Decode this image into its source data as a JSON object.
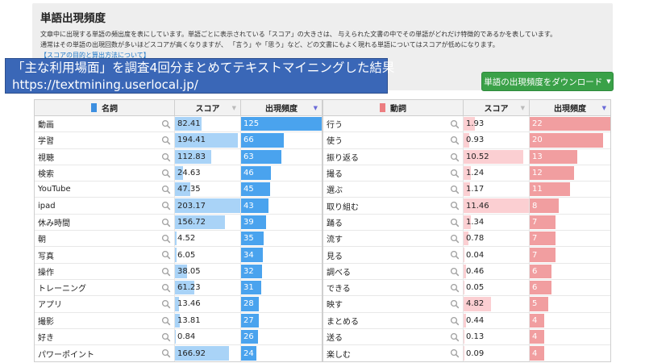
{
  "info": {
    "title": "単語出現頻度",
    "desc_line1": "文章中に出現する単語の頻出度を表にしています。単語ごとに表示されている「スコア」の大きさは、 与えられた文書の中でその単語がどれだけ特徴的であるかを表しています。",
    "desc_line2": "通常はその単語の出現回数が多いほどスコアが高くなりますが、 「言う」や「思う」など、どの文書にもよく現れる単語についてはスコアが低めになります。",
    "link": "【スコアの目的と算出方法について】"
  },
  "banner": {
    "line1": "「主な利用場面」を調査4回分まとめてテキストマイニングした結果",
    "line2": "https://textmining.userlocal.jp/"
  },
  "download_button": "単語の出現頻度をダウンロード",
  "colors": {
    "noun_bar": "#a9d3f7",
    "noun_freq": "#4aa3ee",
    "noun_legend": "#3d8fe0",
    "verb_bar": "#fbcfd2",
    "verb_freq": "#f19ea0",
    "verb_legend": "#ec7d80"
  },
  "nouns": {
    "header": {
      "word": "名詞",
      "score": "スコア",
      "freq": "出現頻度"
    },
    "rows": [
      {
        "word": "動画",
        "score": "82.41",
        "freq": "125"
      },
      {
        "word": "学習",
        "score": "194.41",
        "freq": "66"
      },
      {
        "word": "視聴",
        "score": "112.83",
        "freq": "63"
      },
      {
        "word": "検索",
        "score": "24.63",
        "freq": "46"
      },
      {
        "word": "YouTube",
        "score": "47.35",
        "freq": "45"
      },
      {
        "word": "ipad",
        "score": "203.17",
        "freq": "43"
      },
      {
        "word": "休み時間",
        "score": "156.72",
        "freq": "39"
      },
      {
        "word": "朝",
        "score": "4.52",
        "freq": "35"
      },
      {
        "word": "写真",
        "score": "6.05",
        "freq": "34"
      },
      {
        "word": "操作",
        "score": "38.05",
        "freq": "32"
      },
      {
        "word": "トレーニング",
        "score": "61.23",
        "freq": "31"
      },
      {
        "word": "アプリ",
        "score": "13.46",
        "freq": "28"
      },
      {
        "word": "撮影",
        "score": "13.81",
        "freq": "27"
      },
      {
        "word": "好き",
        "score": "0.84",
        "freq": "26"
      },
      {
        "word": "パワーポイント",
        "score": "166.92",
        "freq": "24"
      }
    ]
  },
  "verbs": {
    "header": {
      "word": "動詞",
      "score": "スコア",
      "freq": "出現頻度"
    },
    "rows": [
      {
        "word": "行う",
        "score": "1.93",
        "freq": "22"
      },
      {
        "word": "使う",
        "score": "0.93",
        "freq": "20"
      },
      {
        "word": "振り返る",
        "score": "10.52",
        "freq": "13"
      },
      {
        "word": "撮る",
        "score": "1.24",
        "freq": "12"
      },
      {
        "word": "選ぶ",
        "score": "1.17",
        "freq": "11"
      },
      {
        "word": "取り組む",
        "score": "11.46",
        "freq": "8"
      },
      {
        "word": "踊る",
        "score": "1.34",
        "freq": "7"
      },
      {
        "word": "流す",
        "score": "0.78",
        "freq": "7"
      },
      {
        "word": "見る",
        "score": "0.04",
        "freq": "7"
      },
      {
        "word": "調べる",
        "score": "0.46",
        "freq": "6"
      },
      {
        "word": "できる",
        "score": "0.05",
        "freq": "6"
      },
      {
        "word": "映す",
        "score": "4.82",
        "freq": "5"
      },
      {
        "word": "まとめる",
        "score": "0.44",
        "freq": "4"
      },
      {
        "word": "送る",
        "score": "0.13",
        "freq": "4"
      },
      {
        "word": "楽しむ",
        "score": "0.09",
        "freq": "4"
      }
    ]
  }
}
